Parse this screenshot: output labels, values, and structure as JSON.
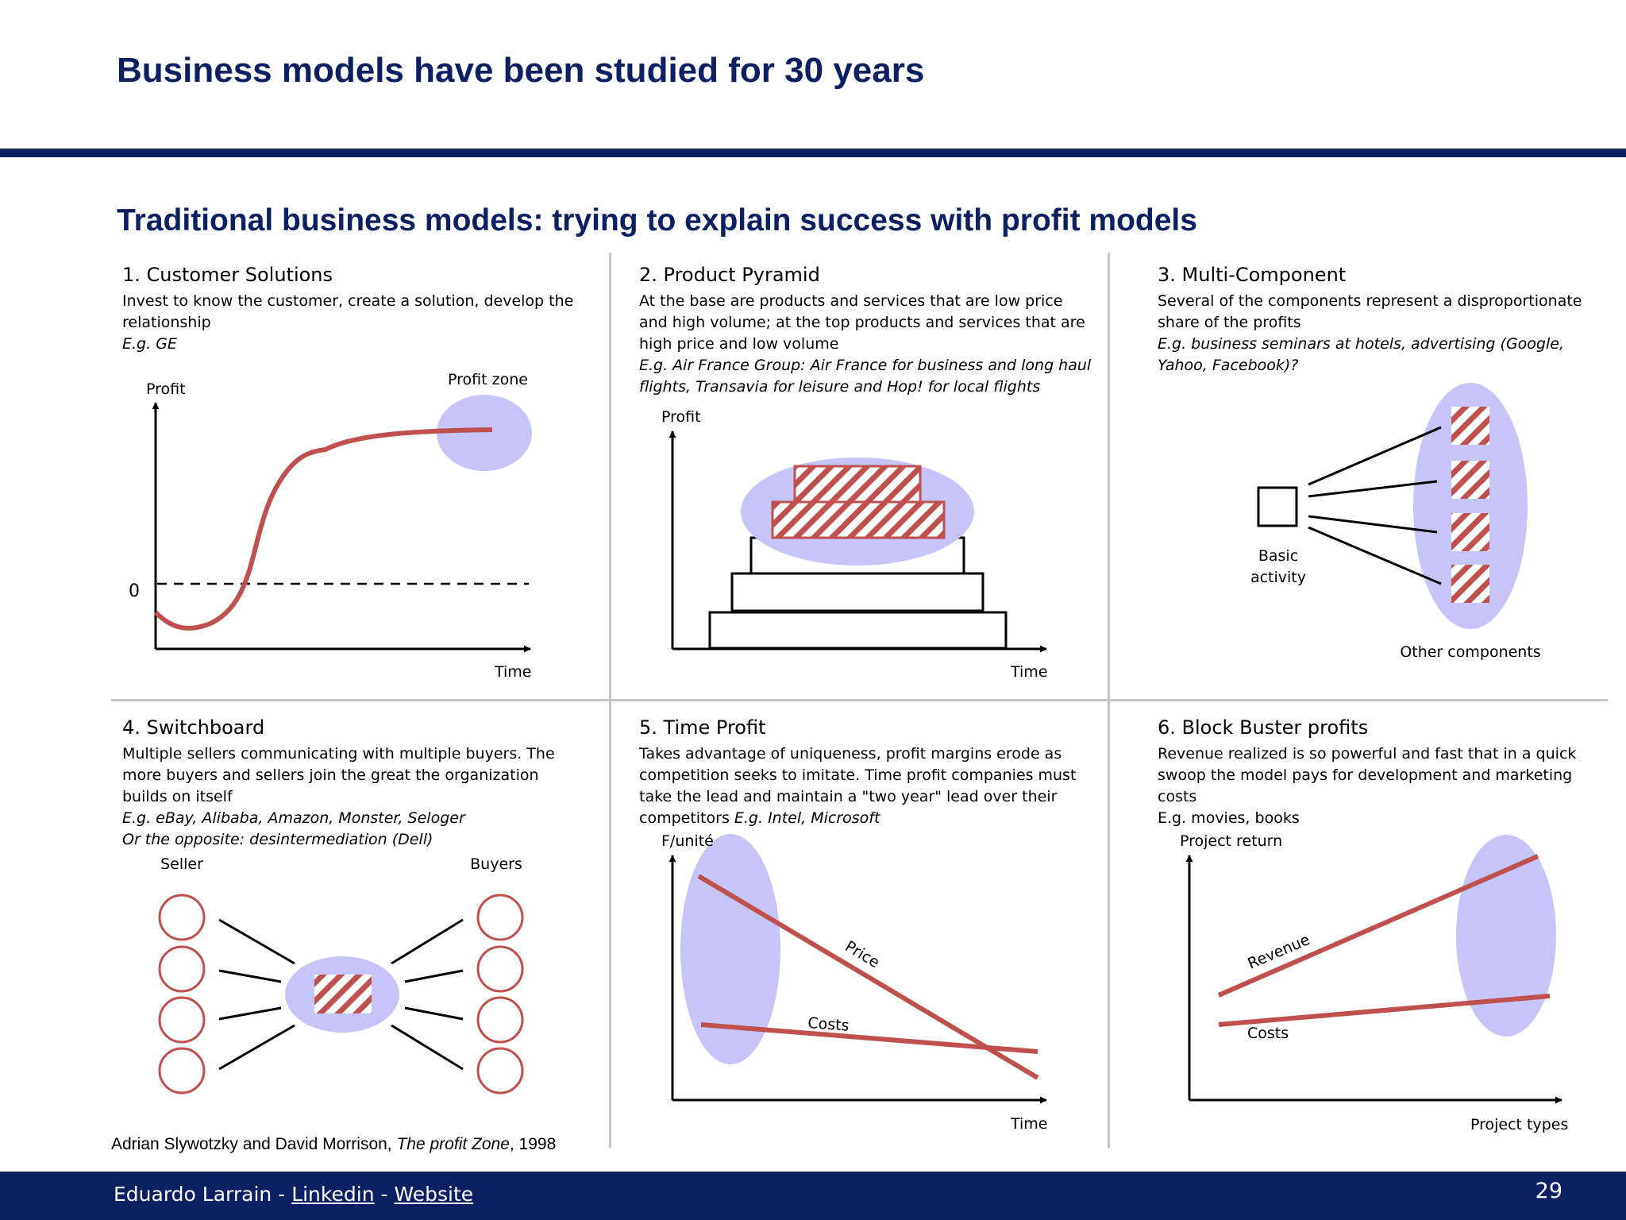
{
  "title": "Business models have been studied for 30 years",
  "subtitle": "Traditional business models: trying to explain success with profit models",
  "panels": [
    {
      "title": "1. Customer Solutions",
      "desc": "Invest to know the customer, create a solution, develop the relationship",
      "example": "E.g. GE",
      "labels": {
        "y": "Profit",
        "x": "Time",
        "zero": "0",
        "zone": "Profit zone"
      }
    },
    {
      "title": "2. Product Pyramid",
      "desc": "At the base are products and services that are low price and high volume; at the top products and services that are high price and low volume",
      "example": "E.g. Air France Group: Air France for business and long haul flights, Transavia for leisure and Hop! for local  flights",
      "labels": {
        "y": "Profit",
        "x": "Time"
      }
    },
    {
      "title": "3. Multi-Component",
      "desc": "Several of the components represent a disproportionate share of the profits",
      "example": "E.g. business seminars at hotels, advertising (Google, Yahoo, Facebook)?",
      "labels": {
        "basic1": "Basic",
        "basic2": "activity",
        "other": "Other components"
      }
    },
    {
      "title": "4. Switchboard",
      "desc": "Multiple sellers communicating with multiple buyers. The more buyers and sellers join the great the organization builds on itself",
      "example": "E.g. eBay, Alibaba, Amazon, Monster, Seloger",
      "example2": "Or the opposite: desintermediation (Dell)",
      "labels": {
        "seller": "Seller",
        "buyers": "Buyers"
      }
    },
    {
      "title": "5. Time Profit",
      "desc": "Takes advantage of uniqueness, profit margins erode as competition seeks to imitate. Time profit companies must take the lead and maintain a \"two year\" lead over their competitors",
      "example": "E.g. Intel, Microsoft",
      "labels": {
        "y": "F/unité",
        "x": "Time",
        "price": "Price",
        "costs": "Costs"
      }
    },
    {
      "title": "6. Block Buster profits",
      "desc": "Revenue realized is so powerful and fast that in a quick swoop the model pays for development and marketing costs",
      "example": "E.g. movies, books",
      "labels": {
        "y": "Project return",
        "x": "Project types",
        "revenue": "Revenue",
        "costs": "Costs"
      }
    }
  ],
  "source": {
    "authors": "Adrian Slywotzky and David Morrison, ",
    "book": "The profit Zone",
    "year": ", 1998"
  },
  "footer": {
    "author": "Eduardo Larrain",
    "sep": " - ",
    "linkedin": "Linkedin",
    "website": "Website",
    "page": "29"
  },
  "colors": {
    "navy": "#0d1f63",
    "curve": "#c0504d",
    "zone": "#c5c5f8",
    "divider": "#c4c4c4"
  }
}
